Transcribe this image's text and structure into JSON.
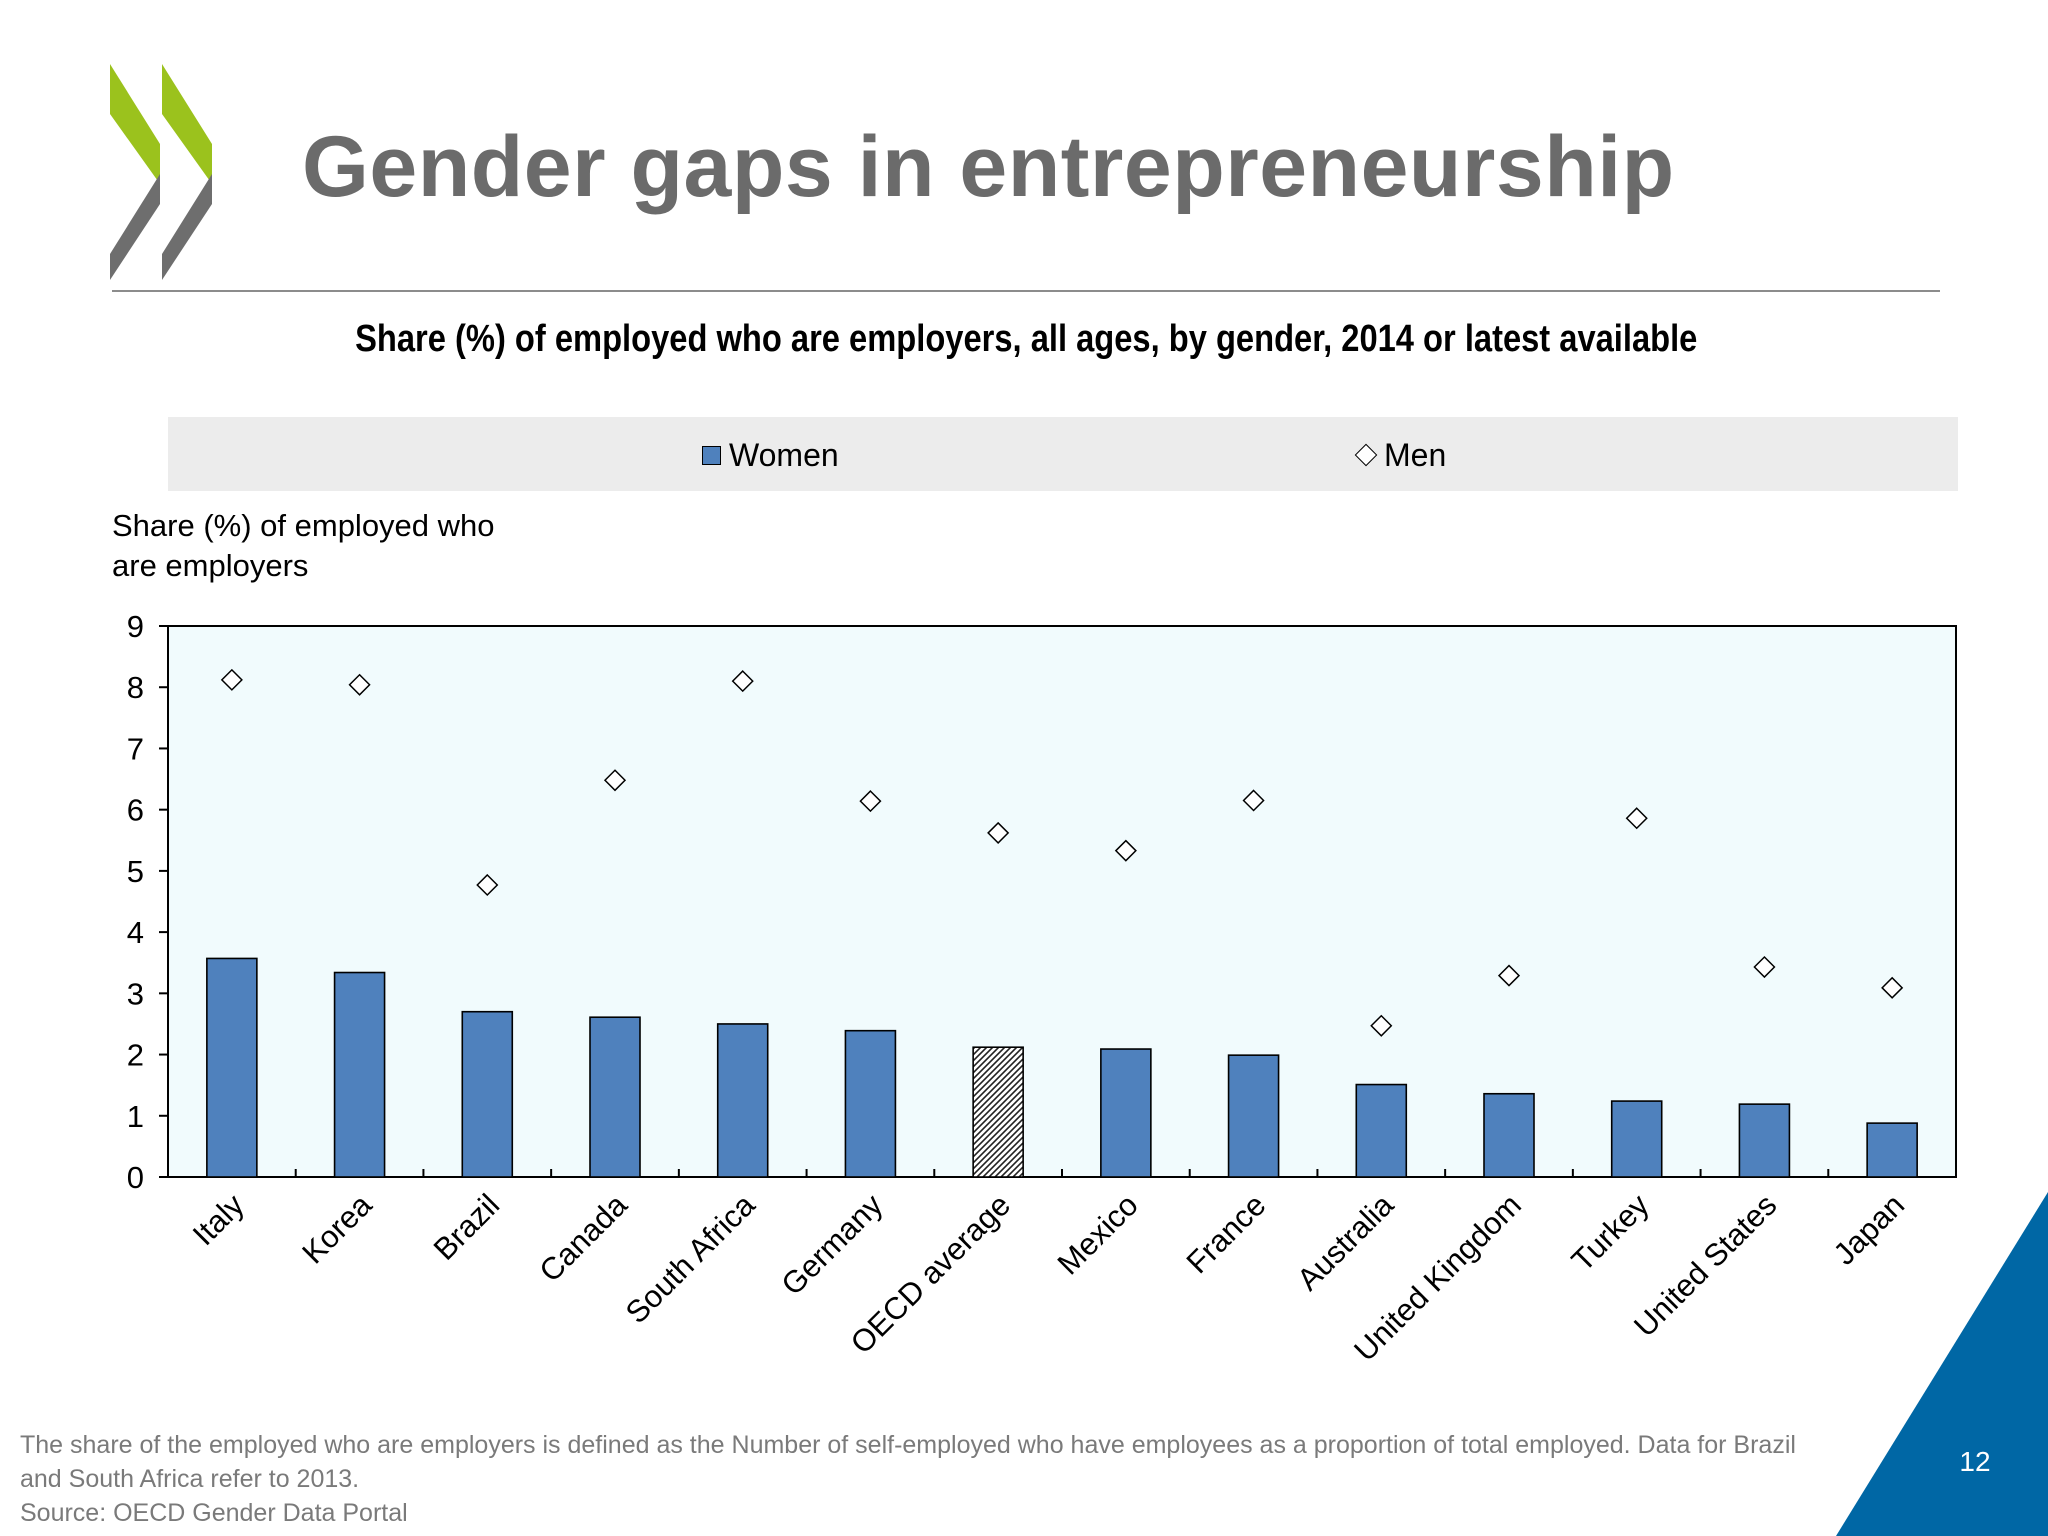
{
  "slide": {
    "title": "Gender gaps in entrepreneurship",
    "page_number": "12",
    "logo_icon": "oecd-chevron-logo",
    "footnote": "The share of the employed who are employers is defined as the Number of self-employed who have employees as a proportion of total employed. Data for Brazil and South Africa refer to 2013.",
    "source": "Source: OECD Gender Data Portal",
    "colors": {
      "title": "#6b6b6b",
      "logo_green": "#9bc21d",
      "logo_grey": "#6e6e6e",
      "corner_blue": "#0067a5",
      "plot_background": "#f1fbfd",
      "women_bar": "#4f81bd"
    }
  },
  "chart_data": {
    "type": "bar",
    "title": "Share (%) of employed who are employers, all ages, by gender, 2014 or latest available",
    "ylabel": "Share (%) of employed who are employers",
    "xlabel": "",
    "ylim": [
      0,
      9
    ],
    "yticks": [
      "0",
      "1",
      "2",
      "3",
      "4",
      "5",
      "6",
      "7",
      "8",
      "9"
    ],
    "grid": false,
    "legend_position": "top",
    "categories": [
      "Italy",
      "Korea",
      "Brazil",
      "Canada",
      "South Africa",
      "Germany",
      "OECD average",
      "Mexico",
      "France",
      "Australia",
      "United Kingdom",
      "Turkey",
      "United States",
      "Japan"
    ],
    "highlight_category": "OECD average",
    "series": [
      {
        "name": "Women",
        "kind": "bar",
        "color": "#4f81bd",
        "values": [
          3.57,
          3.34,
          2.7,
          2.61,
          2.5,
          2.39,
          2.12,
          2.09,
          1.99,
          1.51,
          1.36,
          1.24,
          1.19,
          0.88
        ]
      },
      {
        "name": "Men",
        "kind": "marker",
        "marker": "diamond",
        "values": [
          8.12,
          8.04,
          4.77,
          6.48,
          8.1,
          6.14,
          5.62,
          5.33,
          6.15,
          2.47,
          3.29,
          5.86,
          3.43,
          3.09
        ]
      }
    ]
  }
}
